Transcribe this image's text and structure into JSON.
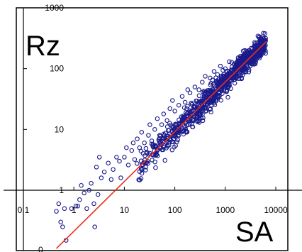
{
  "chart_data": {
    "type": "scatter",
    "title": "",
    "xlabel": "SA",
    "ylabel": "Rz",
    "x_scale": "log",
    "y_scale": "log",
    "xlim": [
      0.1,
      10000
    ],
    "ylim": [
      0.1,
      1000
    ],
    "x_ticks": [
      0.1,
      1,
      10,
      100,
      1000,
      10000
    ],
    "x_tick_labels": [
      "0.1",
      "1",
      "10",
      "100",
      "1000",
      "10000"
    ],
    "y_ticks": [
      1,
      10,
      100,
      1000
    ],
    "y_tick_labels": [
      "1",
      "10",
      "100",
      "1000"
    ],
    "y_bottom_label": "0",
    "grid": false,
    "series": [
      {
        "marker": "open-circle",
        "color": "#1a1a8c",
        "points_note": "",
        "points": [
          [
            0.45,
            0.45
          ],
          [
            0.55,
            0.3
          ],
          [
            0.6,
            0.25
          ],
          [
            0.7,
            0.15
          ],
          [
            0.5,
            0.6
          ],
          [
            0.65,
            0.5
          ],
          [
            0.9,
            0.5
          ],
          [
            1.1,
            0.55
          ],
          [
            1.2,
            0.55
          ],
          [
            1.8,
            0.5
          ],
          [
            2.5,
            0.6
          ],
          [
            2.6,
            0.25
          ],
          [
            1.3,
            0.7
          ],
          [
            1.6,
            0.9
          ],
          [
            1.4,
            1.2
          ],
          [
            2.0,
            1.0
          ],
          [
            2.2,
            1.3
          ],
          [
            3.0,
            0.85
          ],
          [
            3.5,
            1.6
          ],
          [
            4.0,
            2.0
          ],
          [
            2.8,
            2.4
          ],
          [
            4.8,
            2.8
          ],
          [
            3.2,
            3.5
          ],
          [
            5.5,
            1.5
          ],
          [
            6.0,
            2.2
          ],
          [
            7.0,
            3.5
          ],
          [
            8.0,
            3.0
          ],
          [
            8.5,
            1.6
          ],
          [
            10,
            3.5
          ],
          [
            11,
            5
          ],
          [
            12,
            2.6
          ],
          [
            14,
            4.5
          ],
          [
            15,
            6
          ],
          [
            16,
            3.2
          ],
          [
            18,
            7
          ],
          [
            20,
            5
          ],
          [
            22,
            9
          ],
          [
            25,
            6
          ],
          [
            28,
            4.2
          ],
          [
            30,
            8
          ],
          [
            32,
            12
          ],
          [
            35,
            6.5
          ],
          [
            40,
            10
          ],
          [
            45,
            15
          ],
          [
            50,
            8
          ],
          [
            55,
            12
          ],
          [
            60,
            18
          ],
          [
            70,
            14
          ],
          [
            80,
            22
          ],
          [
            90,
            30
          ],
          [
            100,
            20
          ],
          [
            120,
            25
          ],
          [
            140,
            35
          ],
          [
            160,
            28
          ],
          [
            180,
            45
          ],
          [
            200,
            40
          ],
          [
            250,
            50
          ],
          [
            300,
            45
          ],
          [
            350,
            60
          ],
          [
            400,
            75
          ],
          [
            500,
            70
          ],
          [
            600,
            90
          ],
          [
            700,
            80
          ],
          [
            800,
            110
          ],
          [
            1000,
            100
          ],
          [
            1200,
            130
          ],
          [
            1500,
            120
          ],
          [
            1800,
            150
          ],
          [
            2000,
            160
          ],
          [
            2500,
            170
          ],
          [
            3000,
            180
          ],
          [
            3500,
            190
          ],
          [
            4000,
            200
          ],
          [
            5000,
            220
          ],
          [
            5500,
            250
          ],
          [
            6000,
            210
          ]
        ]
      }
    ],
    "trendline": {
      "type": "power",
      "color": "#e8301a",
      "from": [
        0.45,
        0.11
      ],
      "to": [
        6500,
        280
      ]
    }
  }
}
